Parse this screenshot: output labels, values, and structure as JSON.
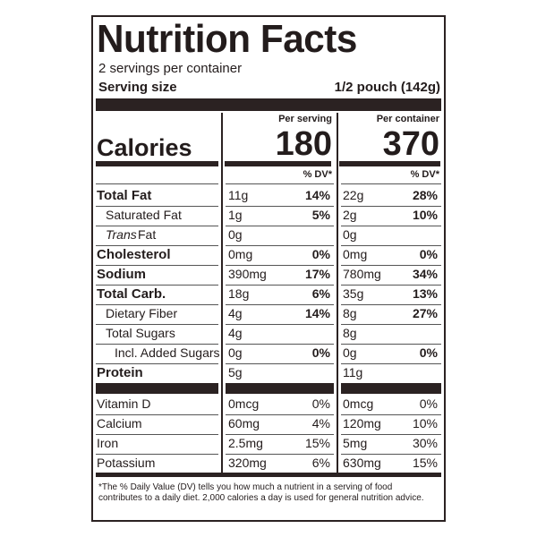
{
  "header": {
    "title": "Nutrition Facts",
    "servings": "2 servings per container",
    "serving_size_label": "Serving size",
    "serving_size": "1/2 pouch (142g)"
  },
  "calories_label": "Calories",
  "columns": [
    {
      "heading": "Per serving",
      "calories": "180",
      "dv_heading": "% DV*"
    },
    {
      "heading": "Per container",
      "calories": "370",
      "dv_heading": "% DV*"
    }
  ],
  "nutrients": [
    {
      "name": "Total Fat",
      "bold": true,
      "indent": 0,
      "amounts": [
        [
          "11g",
          "14%"
        ],
        [
          "22g",
          "28%"
        ]
      ]
    },
    {
      "name": "Saturated Fat",
      "bold": false,
      "indent": 1,
      "amounts": [
        [
          "1g",
          "5%"
        ],
        [
          "2g",
          "10%"
        ]
      ]
    },
    {
      "name_italic": "Trans",
      "name": "Fat",
      "bold": false,
      "indent": 1,
      "amounts": [
        [
          "0g",
          null
        ],
        [
          "0g",
          null
        ]
      ]
    },
    {
      "name": "Cholesterol",
      "bold": true,
      "indent": 0,
      "amounts": [
        [
          "0mg",
          "0%"
        ],
        [
          "0mg",
          "0%"
        ]
      ]
    },
    {
      "name": "Sodium",
      "bold": true,
      "indent": 0,
      "amounts": [
        [
          "390mg",
          "17%"
        ],
        [
          "780mg",
          "34%"
        ]
      ]
    },
    {
      "name": "Total Carb.",
      "bold": true,
      "indent": 0,
      "amounts": [
        [
          "18g",
          "6%"
        ],
        [
          "35g",
          "13%"
        ]
      ]
    },
    {
      "name": "Dietary Fiber",
      "bold": false,
      "indent": 1,
      "amounts": [
        [
          "4g",
          "14%"
        ],
        [
          "8g",
          "27%"
        ]
      ]
    },
    {
      "name": "Total Sugars",
      "bold": false,
      "indent": 1,
      "amounts": [
        [
          "4g",
          null
        ],
        [
          "8g",
          null
        ]
      ]
    },
    {
      "name": "Incl. Added Sugars",
      "bold": false,
      "indent": 2,
      "amounts": [
        [
          "0g",
          "0%"
        ],
        [
          "0g",
          "0%"
        ]
      ]
    },
    {
      "name": "Protein",
      "bold": true,
      "indent": 0,
      "amounts": [
        [
          "5g",
          null
        ],
        [
          "11g",
          null
        ]
      ]
    }
  ],
  "micronutrients": [
    {
      "name": "Vitamin D",
      "amounts": [
        [
          "0mcg",
          "0%"
        ],
        [
          "0mcg",
          "0%"
        ]
      ]
    },
    {
      "name": "Calcium",
      "amounts": [
        [
          "60mg",
          "4%"
        ],
        [
          "120mg",
          "10%"
        ]
      ]
    },
    {
      "name": "Iron",
      "amounts": [
        [
          "2.5mg",
          "15%"
        ],
        [
          "5mg",
          "30%"
        ]
      ]
    },
    {
      "name": "Potassium",
      "amounts": [
        [
          "320mg",
          "6%"
        ],
        [
          "630mg",
          "15%"
        ]
      ]
    }
  ],
  "footnote": "*The % Daily Value (DV) tells you how much a nutrient in a serving of food contributes to a daily diet. 2,000 calories a day is used for general nutrition advice."
}
